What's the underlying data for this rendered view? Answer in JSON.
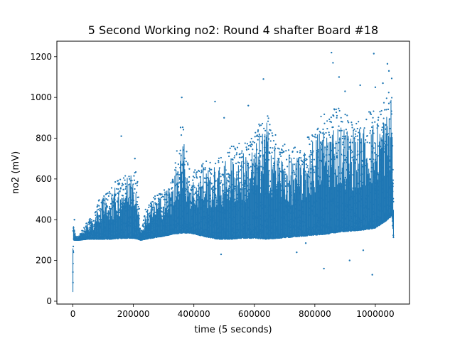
{
  "chart_data": {
    "type": "scatter",
    "title": "5 Second Working no2: Round 4 shafter Board #18",
    "xlabel": "time (5 seconds)",
    "ylabel": "no2 (mV)",
    "xlim": [
      -53000,
      1113000
    ],
    "ylim": [
      -14,
      1276
    ],
    "x_ticks": [
      0,
      200000,
      400000,
      600000,
      800000,
      1000000
    ],
    "x_tick_labels": [
      "0",
      "200000",
      "400000",
      "600000",
      "800000",
      "1000000"
    ],
    "y_ticks": [
      0,
      200,
      400,
      600,
      800,
      1000,
      1200
    ],
    "y_tick_labels": [
      "0",
      "200",
      "400",
      "600",
      "800",
      "1000",
      "1200"
    ],
    "grid": false,
    "legend": "none",
    "marker_color": "#1f77b4",
    "series": [
      {
        "color": "#1f77b4",
        "envelope": {
          "x": [
            0,
            2000,
            8000,
            20000,
            50000,
            70000,
            90000,
            120000,
            150000,
            180000,
            200000,
            215000,
            225000,
            240000,
            260000,
            300000,
            330000,
            360000,
            390000,
            430000,
            480000,
            520000,
            560000,
            600000,
            640000,
            680000,
            720000,
            760000,
            800000,
            840000,
            880000,
            920000,
            960000,
            1000000,
            1040000,
            1055000,
            1060000
          ],
          "low": [
            45,
            300,
            300,
            300,
            305,
            305,
            305,
            305,
            308,
            310,
            310,
            305,
            300,
            305,
            310,
            320,
            330,
            335,
            335,
            320,
            305,
            305,
            310,
            310,
            305,
            310,
            315,
            320,
            325,
            330,
            340,
            345,
            350,
            360,
            400,
            420,
            310
          ],
          "high": [
            315,
            400,
            320,
            320,
            400,
            420,
            520,
            560,
            600,
            650,
            700,
            610,
            330,
            460,
            520,
            560,
            600,
            900,
            620,
            700,
            700,
            760,
            780,
            820,
            960,
            780,
            760,
            760,
            880,
            940,
            950,
            900,
            920,
            950,
            1000,
            1100,
            560
          ]
        },
        "outliers": [
          {
            "x": 5000,
            "y": 400
          },
          {
            "x": 160000,
            "y": 810
          },
          {
            "x": 205000,
            "y": 700
          },
          {
            "x": 360000,
            "y": 1000
          },
          {
            "x": 470000,
            "y": 980
          },
          {
            "x": 490000,
            "y": 230
          },
          {
            "x": 500000,
            "y": 900
          },
          {
            "x": 580000,
            "y": 960
          },
          {
            "x": 630000,
            "y": 1090
          },
          {
            "x": 740000,
            "y": 240
          },
          {
            "x": 770000,
            "y": 285
          },
          {
            "x": 820000,
            "y": 780
          },
          {
            "x": 830000,
            "y": 160
          },
          {
            "x": 850000,
            "y": 350
          },
          {
            "x": 855000,
            "y": 1220
          },
          {
            "x": 860000,
            "y": 1170
          },
          {
            "x": 880000,
            "y": 1100
          },
          {
            "x": 900000,
            "y": 1030
          },
          {
            "x": 915000,
            "y": 200
          },
          {
            "x": 950000,
            "y": 1060
          },
          {
            "x": 960000,
            "y": 250
          },
          {
            "x": 980000,
            "y": 600
          },
          {
            "x": 990000,
            "y": 130
          },
          {
            "x": 995000,
            "y": 1215
          },
          {
            "x": 1000000,
            "y": 1050
          },
          {
            "x": 1025000,
            "y": 1070
          },
          {
            "x": 1040000,
            "y": 1165
          },
          {
            "x": 1045000,
            "y": 1130
          }
        ]
      }
    ]
  }
}
